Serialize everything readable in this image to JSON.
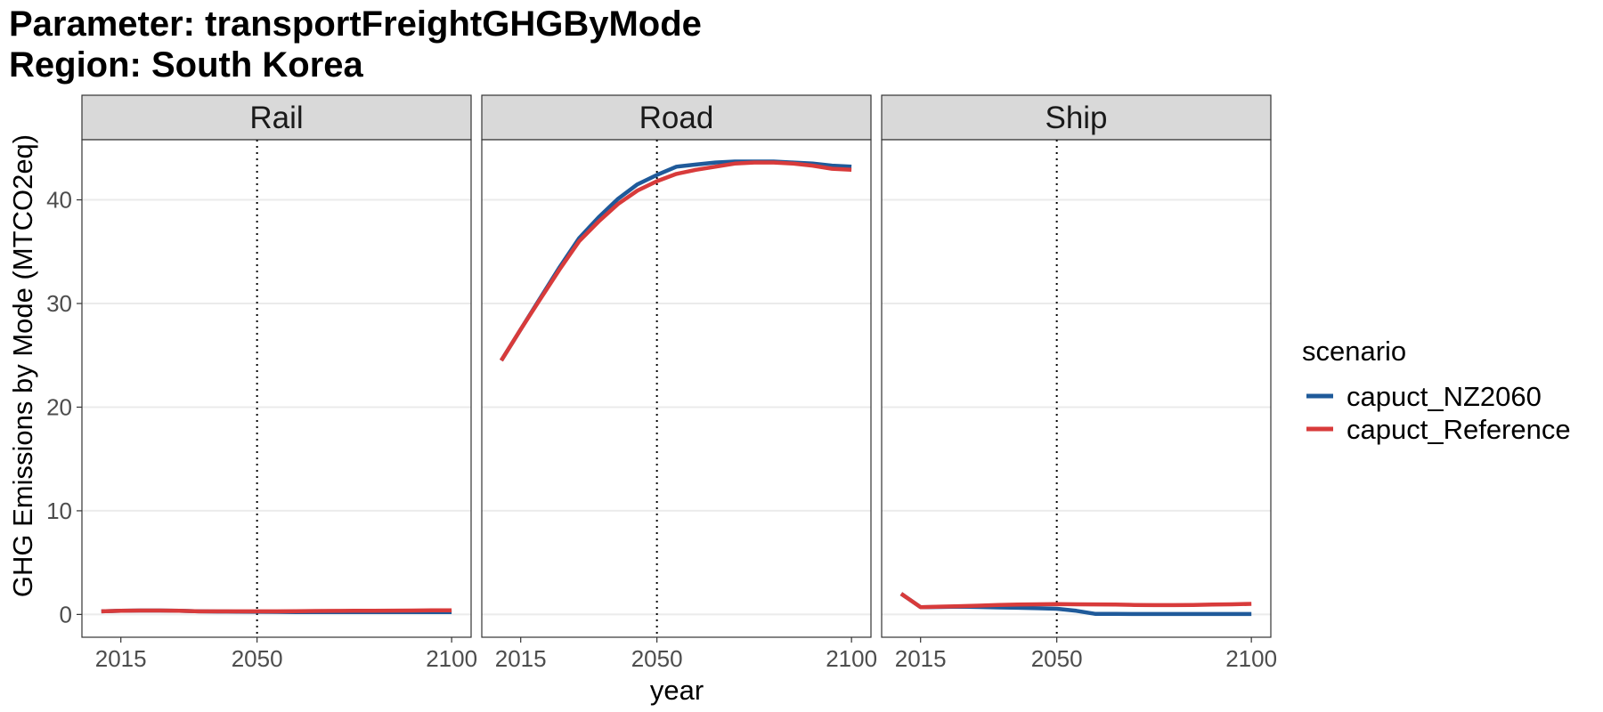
{
  "title": {
    "line1": "Parameter: transportFreightGHGByMode",
    "line2": "Region: South Korea"
  },
  "chart_data": {
    "type": "line",
    "xlabel": "year",
    "ylabel": "GHG Emissions by Mode (MTCO2eq)",
    "ylim": [
      -2.2,
      45.8
    ],
    "yticks": [
      0,
      10,
      20,
      30,
      40
    ],
    "xlim": [
      2005,
      2105
    ],
    "xticks": [
      2015,
      2050,
      2100
    ],
    "vline_x": 2050,
    "grid": true,
    "legend": {
      "title": "scenario",
      "placement": "right",
      "entries": [
        "capuct_NZ2060",
        "capuct_Reference"
      ]
    },
    "colors": {
      "capuct_NZ2060": "#1f5a9a",
      "capuct_Reference": "#d83b3b"
    },
    "x": [
      2010,
      2015,
      2020,
      2025,
      2030,
      2035,
      2040,
      2045,
      2050,
      2055,
      2060,
      2065,
      2070,
      2075,
      2080,
      2085,
      2090,
      2095,
      2100
    ],
    "panels": [
      {
        "name": "Rail",
        "series": [
          {
            "name": "capuct_NZ2060",
            "values": [
              0.3,
              0.35,
              0.38,
              0.38,
              0.35,
              0.3,
              0.28,
              0.27,
              0.26,
              0.25,
              0.23,
              0.22,
              0.22,
              0.22,
              0.22,
              0.22,
              0.22,
              0.22,
              0.22
            ]
          },
          {
            "name": "capuct_Reference",
            "values": [
              0.3,
              0.35,
              0.38,
              0.38,
              0.35,
              0.3,
              0.3,
              0.3,
              0.3,
              0.3,
              0.32,
              0.33,
              0.34,
              0.35,
              0.36,
              0.37,
              0.38,
              0.39,
              0.4
            ]
          }
        ]
      },
      {
        "name": "Road",
        "series": [
          {
            "name": "capuct_NZ2060",
            "values": [
              24.5,
              27.5,
              30.5,
              33.5,
              36.3,
              38.3,
              40.1,
              41.5,
              42.4,
              43.2,
              43.4,
              43.6,
              43.7,
              43.7,
              43.7,
              43.6,
              43.5,
              43.3,
              43.2
            ]
          },
          {
            "name": "capuct_Reference",
            "values": [
              24.5,
              27.5,
              30.4,
              33.3,
              36.0,
              37.9,
              39.6,
              40.9,
              41.8,
              42.5,
              42.9,
              43.2,
              43.5,
              43.6,
              43.6,
              43.5,
              43.3,
              43.0,
              42.9
            ]
          }
        ]
      },
      {
        "name": "Ship",
        "series": [
          {
            "name": "capuct_NZ2060",
            "values": [
              2.0,
              0.7,
              0.72,
              0.75,
              0.72,
              0.68,
              0.64,
              0.6,
              0.55,
              0.35,
              0.05,
              0.05,
              0.04,
              0.04,
              0.04,
              0.04,
              0.04,
              0.04,
              0.04
            ]
          },
          {
            "name": "capuct_Reference",
            "values": [
              2.0,
              0.7,
              0.75,
              0.8,
              0.85,
              0.92,
              0.96,
              0.98,
              1.0,
              0.98,
              0.97,
              0.95,
              0.92,
              0.9,
              0.9,
              0.92,
              0.95,
              0.98,
              1.02
            ]
          }
        ]
      }
    ]
  }
}
